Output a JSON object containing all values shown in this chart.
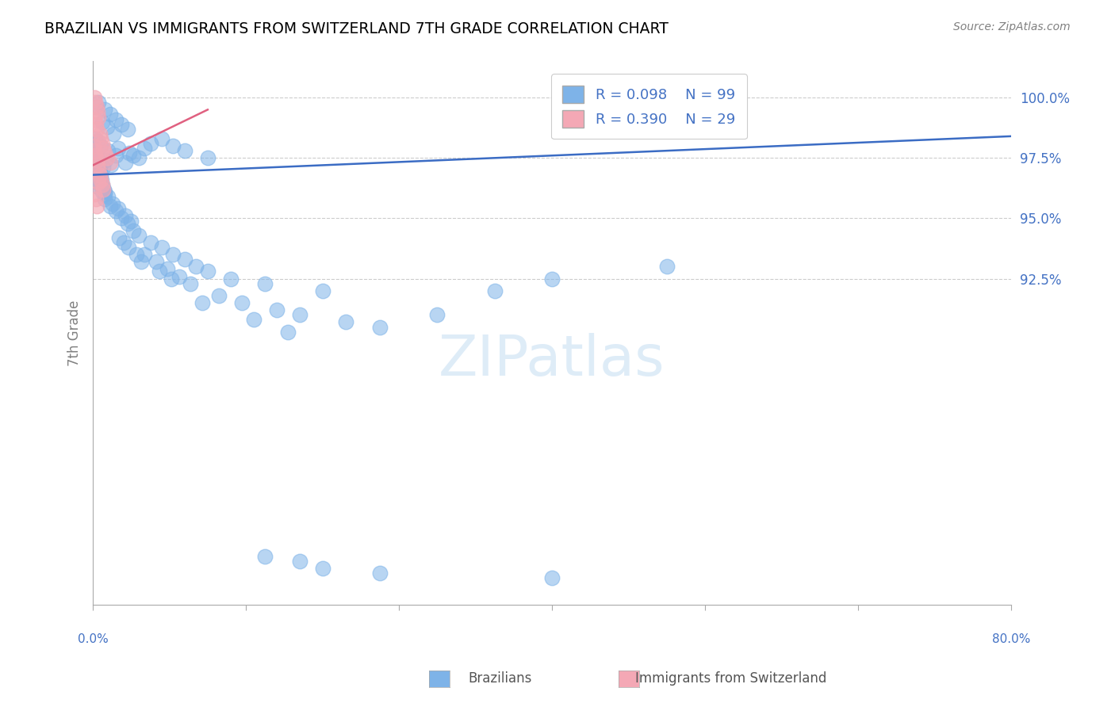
{
  "title": "BRAZILIAN VS IMMIGRANTS FROM SWITZERLAND 7TH GRADE CORRELATION CHART",
  "source": "Source: ZipAtlas.com",
  "ylabel": "7th Grade",
  "y_ticks": [
    92.5,
    95.0,
    97.5,
    100.0
  ],
  "y_tick_labels": [
    "92.5%",
    "95.0%",
    "97.5%",
    "100.0%"
  ],
  "x_range": [
    0.0,
    80.0
  ],
  "y_range": [
    79.0,
    101.5
  ],
  "legend_blue_r": "R = 0.098",
  "legend_blue_n": "N = 99",
  "legend_pink_r": "R = 0.390",
  "legend_pink_n": "N = 29",
  "blue_color": "#7EB3E8",
  "pink_color": "#F4A8B5",
  "blue_line_color": "#3B6CC4",
  "pink_line_color": "#E06080",
  "blue_dots": [
    [
      0.5,
      99.8
    ],
    [
      1.0,
      99.5
    ],
    [
      1.5,
      99.3
    ],
    [
      2.0,
      99.1
    ],
    [
      0.3,
      99.6
    ],
    [
      0.8,
      99.0
    ],
    [
      1.2,
      98.8
    ],
    [
      2.5,
      98.9
    ],
    [
      3.0,
      98.7
    ],
    [
      1.8,
      98.5
    ],
    [
      0.2,
      98.3
    ],
    [
      0.4,
      98.2
    ],
    [
      0.7,
      98.0
    ],
    [
      1.3,
      97.8
    ],
    [
      2.2,
      97.9
    ],
    [
      3.5,
      97.6
    ],
    [
      4.0,
      97.5
    ],
    [
      2.8,
      97.3
    ],
    [
      1.6,
      97.2
    ],
    [
      0.6,
      97.0
    ],
    [
      0.9,
      97.1
    ],
    [
      1.1,
      97.4
    ],
    [
      2.0,
      97.6
    ],
    [
      3.2,
      97.7
    ],
    [
      4.5,
      97.9
    ],
    [
      5.0,
      98.1
    ],
    [
      6.0,
      98.3
    ],
    [
      7.0,
      98.0
    ],
    [
      8.0,
      97.8
    ],
    [
      10.0,
      97.5
    ],
    [
      0.1,
      96.8
    ],
    [
      0.3,
      96.5
    ],
    [
      0.5,
      96.3
    ],
    [
      0.8,
      96.1
    ],
    [
      1.0,
      95.8
    ],
    [
      1.5,
      95.5
    ],
    [
      2.0,
      95.3
    ],
    [
      2.5,
      95.0
    ],
    [
      3.0,
      94.8
    ],
    [
      3.5,
      94.5
    ],
    [
      4.0,
      94.3
    ],
    [
      5.0,
      94.0
    ],
    [
      6.0,
      93.8
    ],
    [
      7.0,
      93.5
    ],
    [
      8.0,
      93.3
    ],
    [
      9.0,
      93.0
    ],
    [
      10.0,
      92.8
    ],
    [
      12.0,
      92.5
    ],
    [
      15.0,
      92.3
    ],
    [
      20.0,
      92.0
    ],
    [
      0.2,
      96.9
    ],
    [
      0.4,
      96.7
    ],
    [
      0.6,
      96.5
    ],
    [
      0.8,
      96.3
    ],
    [
      1.0,
      96.1
    ],
    [
      1.3,
      95.9
    ],
    [
      1.7,
      95.6
    ],
    [
      2.2,
      95.4
    ],
    [
      2.8,
      95.1
    ],
    [
      3.3,
      94.9
    ],
    [
      0.15,
      97.8
    ],
    [
      0.25,
      97.6
    ],
    [
      0.35,
      97.4
    ],
    [
      0.45,
      97.2
    ],
    [
      0.55,
      97.0
    ],
    [
      0.65,
      96.8
    ],
    [
      0.75,
      96.6
    ],
    [
      0.85,
      96.4
    ],
    [
      0.95,
      96.2
    ],
    [
      1.05,
      96.0
    ],
    [
      4.5,
      93.5
    ],
    [
      5.5,
      93.2
    ],
    [
      6.5,
      92.9
    ],
    [
      7.5,
      92.6
    ],
    [
      8.5,
      92.3
    ],
    [
      11.0,
      91.8
    ],
    [
      13.0,
      91.5
    ],
    [
      16.0,
      91.2
    ],
    [
      18.0,
      91.0
    ],
    [
      22.0,
      90.7
    ],
    [
      25.0,
      90.5
    ],
    [
      30.0,
      91.0
    ],
    [
      35.0,
      92.0
    ],
    [
      40.0,
      92.5
    ],
    [
      50.0,
      93.0
    ],
    [
      2.3,
      94.2
    ],
    [
      2.7,
      94.0
    ],
    [
      3.1,
      93.8
    ],
    [
      3.8,
      93.5
    ],
    [
      4.2,
      93.2
    ],
    [
      5.8,
      92.8
    ],
    [
      6.8,
      92.5
    ],
    [
      9.5,
      91.5
    ],
    [
      14.0,
      90.8
    ],
    [
      17.0,
      90.3
    ],
    [
      20.0,
      80.5
    ],
    [
      15.0,
      81.0
    ],
    [
      18.0,
      80.8
    ],
    [
      25.0,
      80.3
    ],
    [
      40.0,
      80.1
    ]
  ],
  "pink_dots": [
    [
      0.1,
      100.0
    ],
    [
      0.2,
      99.8
    ],
    [
      0.3,
      99.6
    ],
    [
      0.4,
      99.4
    ],
    [
      0.5,
      99.2
    ],
    [
      0.15,
      99.1
    ],
    [
      0.25,
      98.9
    ],
    [
      0.35,
      98.7
    ],
    [
      0.6,
      98.5
    ],
    [
      0.7,
      98.3
    ],
    [
      0.8,
      98.1
    ],
    [
      0.9,
      97.9
    ],
    [
      1.0,
      97.7
    ],
    [
      1.2,
      97.5
    ],
    [
      1.5,
      97.3
    ],
    [
      0.05,
      98.0
    ],
    [
      0.1,
      97.8
    ],
    [
      0.2,
      97.6
    ],
    [
      0.3,
      97.4
    ],
    [
      0.4,
      97.2
    ],
    [
      0.5,
      97.0
    ],
    [
      0.6,
      96.8
    ],
    [
      0.7,
      96.6
    ],
    [
      0.8,
      96.4
    ],
    [
      0.9,
      96.2
    ],
    [
      0.15,
      96.0
    ],
    [
      0.25,
      95.8
    ],
    [
      0.35,
      95.5
    ],
    [
      0.45,
      96.5
    ]
  ],
  "blue_trend_x": [
    0.0,
    80.0
  ],
  "blue_trend_y": [
    96.8,
    98.4
  ],
  "pink_trend_x": [
    0.0,
    10.0
  ],
  "pink_trend_y": [
    97.2,
    99.5
  ]
}
